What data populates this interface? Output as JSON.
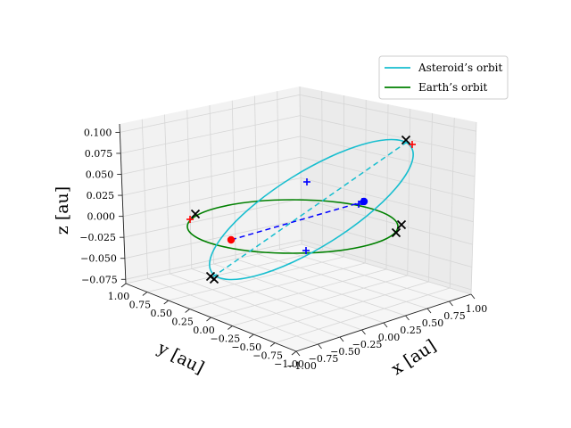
{
  "chart_data": {
    "type": "line3d",
    "title": "",
    "axes": {
      "x": {
        "label": "x [au]",
        "ticks": [
          "−1.00",
          "−0.75",
          "−0.50",
          "−0.25",
          "0.00",
          "0.25",
          "0.50",
          "0.75",
          "1.00"
        ],
        "range": [
          -1.0,
          1.0
        ]
      },
      "y": {
        "label": "y [au]",
        "ticks": [
          "1.00",
          "0.75",
          "0.50",
          "0.25",
          "0.00",
          "−0.25",
          "−0.50",
          "−0.75",
          "−1.00"
        ],
        "range": [
          -1.0,
          1.0
        ]
      },
      "z": {
        "label": "z [au]",
        "ticks": [
          "0.100",
          "0.075",
          "0.050",
          "0.025",
          "0.000",
          "−0.025",
          "−0.050",
          "−0.075"
        ],
        "range": [
          -0.08,
          0.11
        ]
      }
    },
    "grid": true,
    "legend": {
      "position": "top-right",
      "entries": [
        {
          "label": "Asteroid’s orbit",
          "color": "#17becf"
        },
        {
          "label": "Earth’s orbit",
          "color": "#008000"
        }
      ]
    },
    "series": [
      {
        "name": "Asteroid’s orbit",
        "kind": "ellipse",
        "color": "#17becf",
        "semi_major_axis": 1.1,
        "eccentricity": 0.1,
        "inclination_deg": 5.6,
        "node_deg": 40,
        "perihelion_arg_deg": 0
      },
      {
        "name": "Earth’s orbit",
        "kind": "ellipse",
        "color": "#008000",
        "semi_major_axis": 1.0,
        "eccentricity": 0.0167,
        "inclination_deg": 0,
        "node_deg": 0,
        "perihelion_arg_deg": 0
      }
    ],
    "lines": [
      {
        "style": "dashed",
        "color": "#17becf",
        "from": "asteroid_perihelion",
        "to": "asteroid_aphelion"
      },
      {
        "style": "dashed",
        "color": "#0000ff",
        "from": "earth_point",
        "to": "asteroid_point"
      }
    ],
    "points": [
      {
        "kind": "dot",
        "color": "#ff0000",
        "label": "earth_point",
        "xyz": [
          -0.3,
          -0.85,
          0.0
        ]
      },
      {
        "kind": "dot",
        "color": "#0000ff",
        "label": "asteroid_point",
        "xyz": [
          0.1,
          0.95,
          0.0
        ]
      }
    ],
    "markers": {
      "black_x": 6,
      "red_plus": 2,
      "blue_plus": 4
    }
  }
}
